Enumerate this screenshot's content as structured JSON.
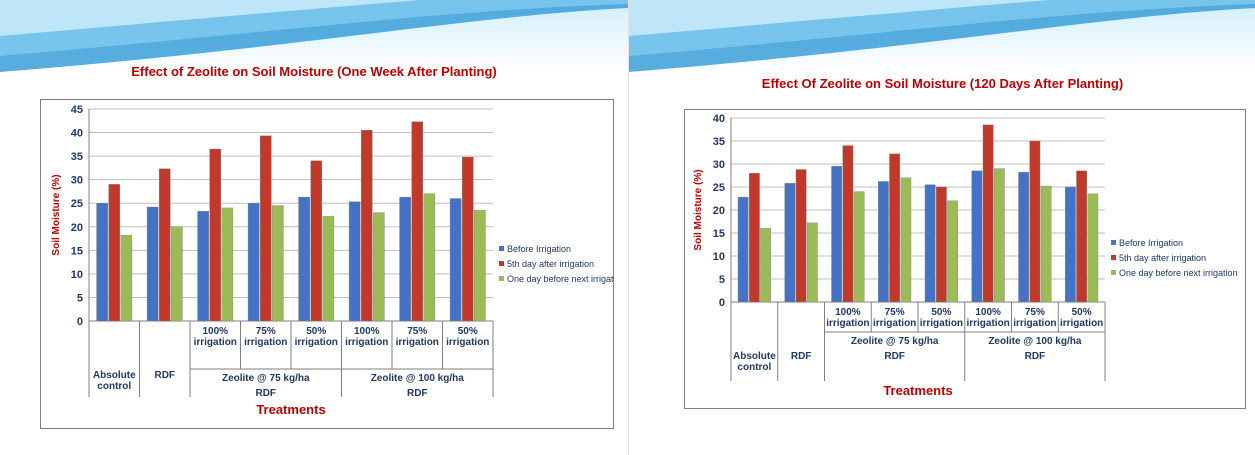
{
  "colors": {
    "title": "#c00000",
    "axis_text": "#1f3864",
    "before": "#4472c4",
    "fifth": "#c0392b",
    "oneday": "#9bbb59"
  },
  "chart_data": [
    {
      "type": "bar",
      "title": "Effect of Zeolite  on Soil Moisture (One Week After Planting)",
      "xlabel": "Treatments",
      "ylabel": "Soil Moisture (%)",
      "ylim": [
        0,
        45
      ],
      "yticks": [
        0,
        5,
        10,
        15,
        20,
        25,
        30,
        35,
        40,
        45
      ],
      "grid": true,
      "legend_position": "right",
      "categories": [
        "Absolute control",
        "RDF",
        "100% irrigation",
        "75% irrigation",
        "50% irrigation",
        "100% irrigation",
        "75% irrigation",
        "50% irrigation"
      ],
      "category_lines": [
        [
          "",
          "",
          "",
          "",
          "Absolute",
          "control"
        ],
        [
          "",
          "",
          "",
          "",
          "RDF"
        ],
        [
          "100%",
          "irrigation"
        ],
        [
          "75%",
          "irrigation"
        ],
        [
          "50%",
          "irrigation"
        ],
        [
          "100%",
          "irrigation"
        ],
        [
          "75%",
          "irrigation"
        ],
        [
          "50%",
          "irrigation"
        ]
      ],
      "group_labels": [
        {
          "label": "Zeolite @ 75 kg/ha",
          "sub": "RDF",
          "span": [
            2,
            4
          ]
        },
        {
          "label": "Zeolite @ 100 kg/ha",
          "sub": "RDF",
          "span": [
            5,
            7
          ]
        }
      ],
      "series": [
        {
          "name": "Before Irrigation",
          "values": [
            25,
            24.2,
            23.3,
            25,
            26.3,
            25.3,
            26.3,
            26
          ]
        },
        {
          "name": "5th day after irrigation",
          "values": [
            29,
            32.3,
            36.5,
            39.3,
            34,
            40.5,
            42.3,
            34.8
          ]
        },
        {
          "name": "One day before next irrigation",
          "values": [
            18.2,
            20,
            24,
            24.5,
            22.2,
            23,
            27,
            23.5
          ]
        }
      ]
    },
    {
      "type": "bar",
      "title": "Effect Of Zeolite  on Soil Moisture (120 Days After Planting)",
      "xlabel": "Treatments",
      "ylabel": "Soil Moisture (%)",
      "ylim": [
        0,
        40
      ],
      "yticks": [
        0,
        5,
        10,
        15,
        20,
        25,
        30,
        35,
        40
      ],
      "grid": true,
      "legend_position": "right",
      "categories": [
        "Absolute control",
        "RDF",
        "100% irrigation",
        "75% irrigation",
        "50% irrigation",
        "100% irrigation",
        "75% irrigation",
        "50% irrigation"
      ],
      "category_lines": [
        [
          "",
          "",
          "",
          "",
          "Absolute",
          "control"
        ],
        [
          "",
          "",
          "",
          "",
          "RDF"
        ],
        [
          "100%",
          "irrigation"
        ],
        [
          "75%",
          "irrigation"
        ],
        [
          "50%",
          "irrigation"
        ],
        [
          "100%",
          "irrigation"
        ],
        [
          "75%",
          "irrigation"
        ],
        [
          "50%",
          "irrigation"
        ]
      ],
      "group_labels": [
        {
          "label": "Zeolite @ 75 kg/ha",
          "sub": "RDF",
          "span": [
            2,
            4
          ]
        },
        {
          "label": "Zeolite @ 100 kg/ha",
          "sub": "RDF",
          "span": [
            5,
            7
          ]
        }
      ],
      "series": [
        {
          "name": "Before Irrigation",
          "values": [
            22.8,
            25.8,
            29.5,
            26.2,
            25.5,
            28.5,
            28.2,
            25
          ]
        },
        {
          "name": "5th day after irrigation",
          "values": [
            28,
            28.8,
            34,
            32.2,
            25,
            38.5,
            35,
            28.5
          ]
        },
        {
          "name": "One day before next irrigation",
          "values": [
            16,
            17.2,
            24,
            27,
            22,
            29,
            25.2,
            23.5
          ]
        }
      ]
    }
  ]
}
